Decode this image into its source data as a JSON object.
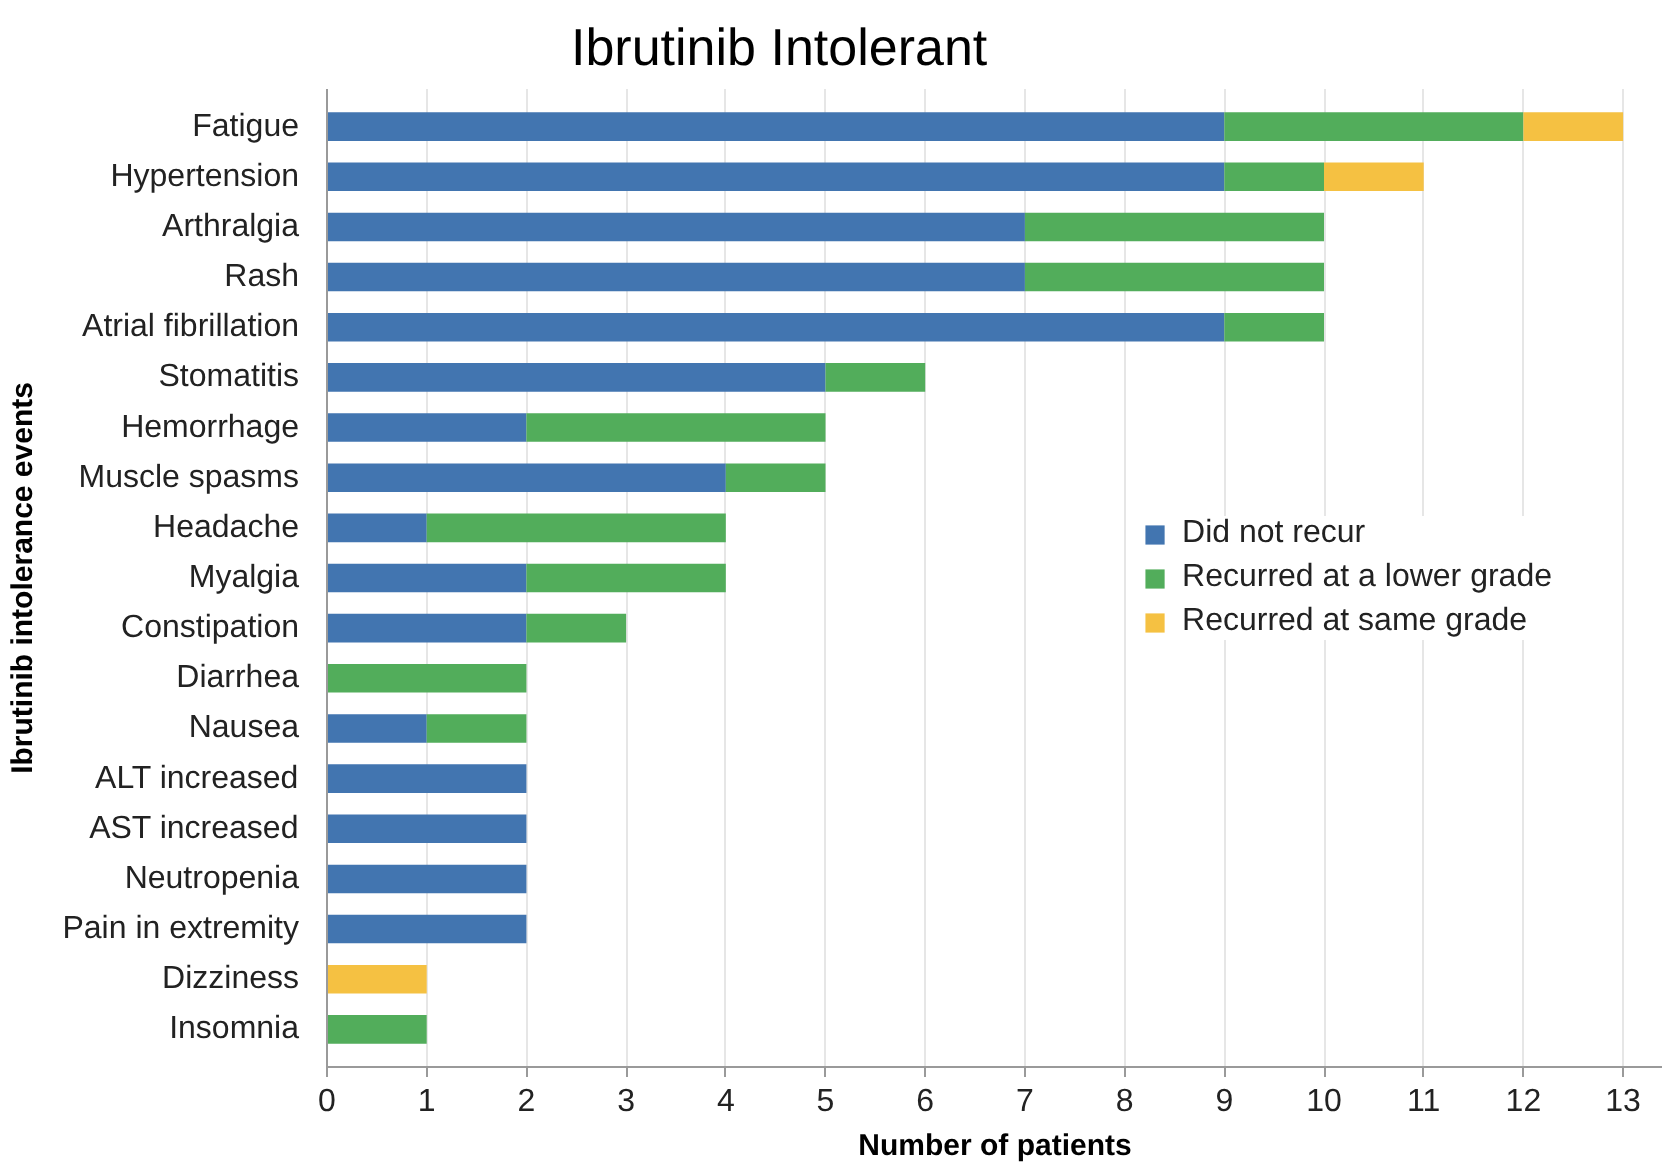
{
  "chart_data": {
    "type": "bar",
    "orientation": "horizontal",
    "stacked": true,
    "title": "Ibrutinib Intolerant",
    "xlabel": "Number of patients",
    "ylabel": "Ibrutinib intolerance events",
    "categories": [
      "Fatigue",
      "Hypertension",
      "Arthralgia",
      "Rash",
      "Atrial fibrillation",
      "Stomatitis",
      "Hemorrhage",
      "Muscle spasms",
      "Headache",
      "Myalgia",
      "Constipation",
      "Diarrhea",
      "Nausea",
      "ALT increased",
      "AST increased",
      "Neutropenia",
      "Pain in extremity",
      "Dizziness",
      "Insomnia"
    ],
    "series": [
      {
        "name": "Did not recur",
        "color": "#4275b0",
        "values": [
          9,
          9,
          7,
          7,
          9,
          5,
          2,
          4,
          1,
          2,
          2,
          null,
          1,
          2,
          2,
          2,
          2,
          null,
          null
        ]
      },
      {
        "name": "Recurred at a lower grade",
        "color": "#52ad5b",
        "values": [
          3,
          1,
          3,
          3,
          1,
          1,
          3,
          1,
          3,
          2,
          1,
          2,
          1,
          null,
          null,
          null,
          null,
          null,
          1
        ]
      },
      {
        "name": "Recurred at same grade",
        "color": "#f5c142",
        "values": [
          1,
          1,
          null,
          null,
          null,
          null,
          null,
          null,
          null,
          null,
          null,
          null,
          null,
          null,
          null,
          null,
          null,
          1,
          null
        ]
      }
    ],
    "xlim": [
      0,
      13.4
    ],
    "xticks": [
      0,
      1,
      2,
      3,
      4,
      5,
      6,
      7,
      8,
      9,
      10,
      11,
      12,
      13
    ],
    "grid": "x",
    "legend": "right"
  }
}
